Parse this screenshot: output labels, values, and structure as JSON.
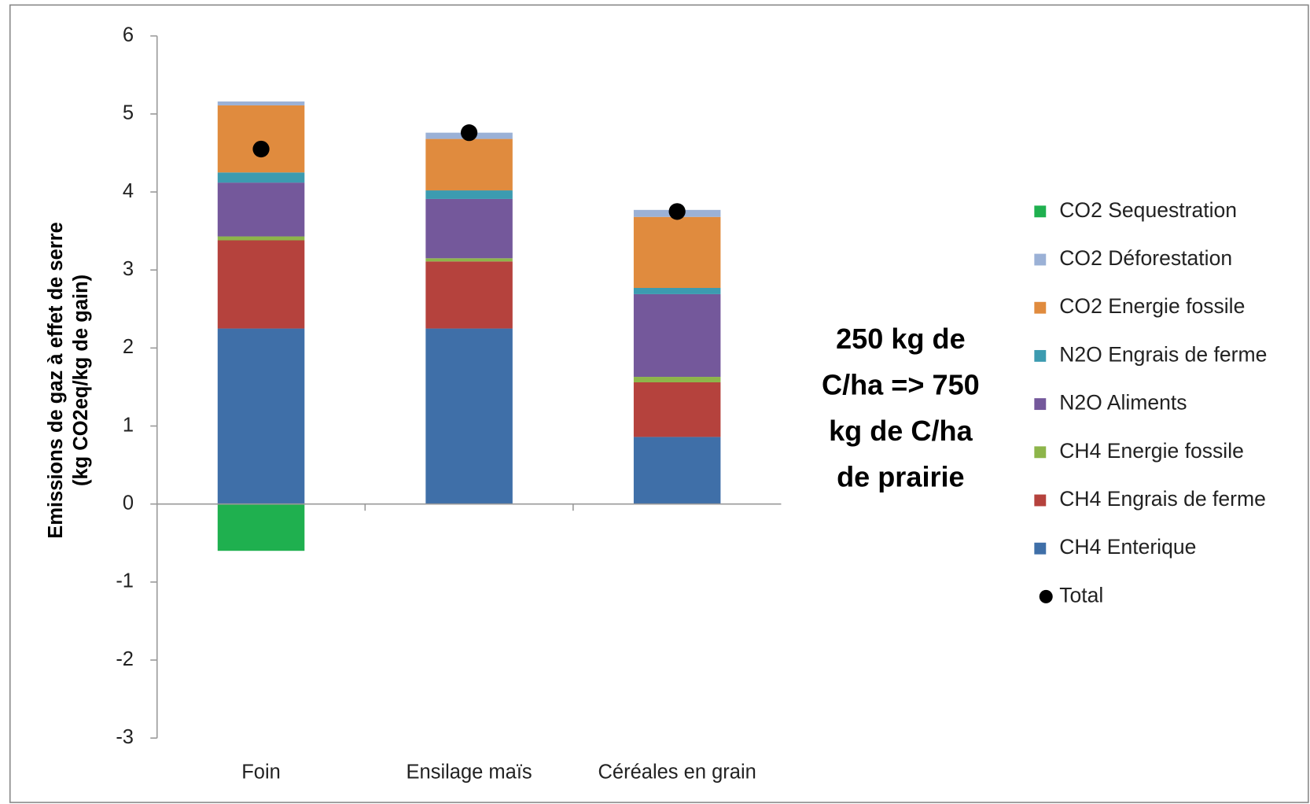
{
  "chart_data": {
    "type": "bar",
    "stacked": true,
    "ylabel_lines": [
      "Emissions de gaz à effet de serre",
      "(kg CO2eq/kg de gain)"
    ],
    "categories": [
      "Foin",
      "Ensilage maïs",
      "Céréales en grain"
    ],
    "series": [
      {
        "name": "CH4 Enterique",
        "color": "#3f6fa8",
        "values": [
          2.25,
          2.25,
          0.86
        ]
      },
      {
        "name": "CH4 Engrais de ferme",
        "color": "#b5423d",
        "values": [
          1.13,
          0.86,
          0.7
        ]
      },
      {
        "name": "CH4 Energie fossile",
        "color": "#8db54a",
        "values": [
          0.05,
          0.04,
          0.07
        ]
      },
      {
        "name": "N2O Aliments",
        "color": "#74589b",
        "values": [
          0.69,
          0.76,
          1.06
        ]
      },
      {
        "name": "N2O Engrais de ferme",
        "color": "#3c9bb0",
        "values": [
          0.13,
          0.11,
          0.08
        ]
      },
      {
        "name": "CO2 Energie fossile",
        "color": "#e08b3e",
        "values": [
          0.86,
          0.66,
          0.91
        ]
      },
      {
        "name": "CO2 Déforestation",
        "color": "#9bb1d6",
        "values": [
          0.05,
          0.08,
          0.09
        ]
      },
      {
        "name": "CO2 Sequestration",
        "color": "#1fb04f",
        "values": [
          -0.6,
          0,
          0
        ]
      }
    ],
    "total": {
      "name": "Total",
      "color": "#000000",
      "values": [
        4.55,
        4.76,
        3.75
      ]
    },
    "ylim": [
      -3,
      6
    ],
    "yticks": [
      -3,
      -2,
      -1,
      0,
      1,
      2,
      3,
      4,
      5,
      6
    ],
    "annotation_lines": [
      "250 kg de",
      "C/ha => 750",
      "kg de C/ha",
      "de prairie"
    ]
  }
}
